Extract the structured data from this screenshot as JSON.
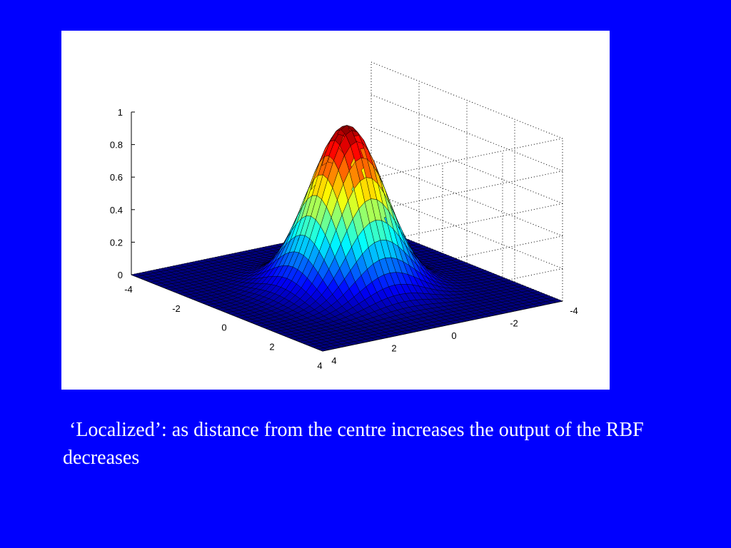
{
  "caption": "‘Localized’: as distance from the centre increases the output of the RBF decreases",
  "colors": {
    "slide_background": "#0000ff",
    "figure_background": "#ffffff",
    "caption_text": "#ffffff",
    "colormap": "jet"
  },
  "chart_data": {
    "type": "surface",
    "function": "z = exp(-(x^2 + y^2) / 2)",
    "title": "",
    "xlabel": "",
    "ylabel": "",
    "zlabel": "",
    "xlim": [
      -4,
      4
    ],
    "ylim": [
      -4,
      4
    ],
    "zlim": [
      0,
      1
    ],
    "x_ticks": [
      -4,
      -2,
      0,
      2,
      4
    ],
    "x_tick_labels": [
      "-4",
      "-2",
      "0",
      "2",
      "4"
    ],
    "y_ticks": [
      -4,
      -2,
      0,
      2,
      4
    ],
    "y_tick_labels": [
      "-4",
      "-2",
      "0",
      "2",
      "4"
    ],
    "z_ticks": [
      0,
      0.2,
      0.4,
      0.6,
      0.8,
      1
    ],
    "z_tick_labels": [
      "0",
      "0.2",
      "0.4",
      "0.6",
      "0.8",
      "1"
    ],
    "grid_points_per_axis": 41,
    "peak": {
      "x": 0,
      "y": 0,
      "z": 1
    },
    "grid": true,
    "legend": "none"
  }
}
